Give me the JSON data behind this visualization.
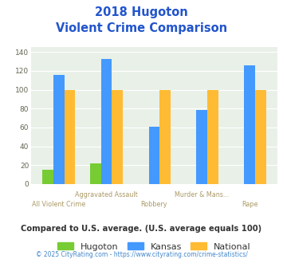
{
  "title_line1": "2018 Hugoton",
  "title_line2": "Violent Crime Comparison",
  "categories_top": [
    "",
    "Aggravated Assault",
    "Murder & Mans...",
    ""
  ],
  "categories_bot": [
    "All Violent Crime",
    "",
    "Robbery",
    "",
    "Rape"
  ],
  "hugoton": [
    15,
    22,
    0,
    0,
    0
  ],
  "kansas": [
    116,
    133,
    61,
    79,
    126
  ],
  "national": [
    100,
    100,
    100,
    100,
    100
  ],
  "hugoton_color": "#77cc33",
  "kansas_color": "#4499ff",
  "national_color": "#ffbb33",
  "ylim": [
    0,
    145
  ],
  "yticks": [
    0,
    20,
    40,
    60,
    80,
    100,
    120,
    140
  ],
  "bg_color": "#ddeedd",
  "plot_area_color": "#e8f0e8",
  "footer_text": "Compared to U.S. average. (U.S. average equals 100)",
  "credit_text": "© 2025 CityRating.com - https://www.cityrating.com/crime-statistics/",
  "legend_labels": [
    "Hugoton",
    "Kansas",
    "National"
  ],
  "title_color": "#2255cc",
  "xlabel_top_color": "#aa9966",
  "xlabel_bot_color": "#aa9966",
  "footer_color": "#333333",
  "credit_color": "#4488cc"
}
